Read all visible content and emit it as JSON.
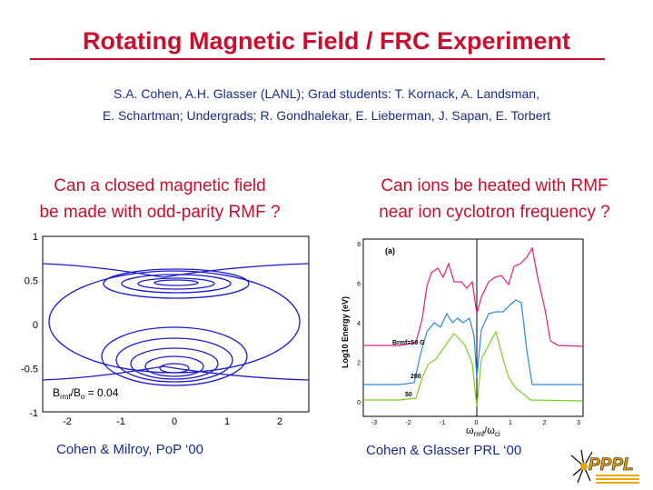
{
  "slide": {
    "title": "Rotating Magnetic Field / FRC Experiment",
    "authors_line1": "S.A. Cohen, A.H. Glasser (LANL); Grad students: T. Kornack, A. Landsman,",
    "authors_line2": "E. Schartman; Undergrads; R. Gondhalekar, E. Lieberman, J. Sapan, E. Torbert",
    "left_question_line1": "Can a closed magnetic field",
    "left_question_line2": "be made with odd-parity RMF ?",
    "right_question_line1": "Can ions be heated with RMF",
    "right_question_line2": "near ion cyclotron frequency ?",
    "left_citation": "Cohen & Milroy, PoP ‘00",
    "right_citation": "Cohen & Glasser PRL ‘00",
    "logo_text": "PPPL"
  },
  "colors": {
    "title": "#c8102e",
    "text_blue": "#1a2a8c",
    "contour": "#1a1ad0",
    "pink": "#e0207a",
    "blue_trace": "#2a8ae0",
    "green": "#7ad020"
  },
  "chart_data": [
    {
      "type": "contour",
      "x_ticks": [
        "-2",
        "-1",
        "0",
        "1",
        "2"
      ],
      "y_ticks": [
        "1",
        "0.5",
        "0",
        "-0.5",
        "-1"
      ],
      "xlim": [
        -2.3,
        2.3
      ],
      "ylim": [
        -1,
        1
      ],
      "annotation": "Brmf/Bo = 0.04"
    },
    {
      "type": "line",
      "panel_label": "(a)",
      "x_ticks": [
        "-3",
        "-2",
        "-1",
        "0",
        "1",
        "2",
        "3"
      ],
      "y_ticks": [
        "8",
        "6",
        "4",
        "2",
        "0"
      ],
      "xlabel": "ωrmf/ωci",
      "ylabel": "Log10 Energy (eV)",
      "series_labels": [
        "Brmf=50 G",
        "200",
        "50"
      ]
    }
  ]
}
